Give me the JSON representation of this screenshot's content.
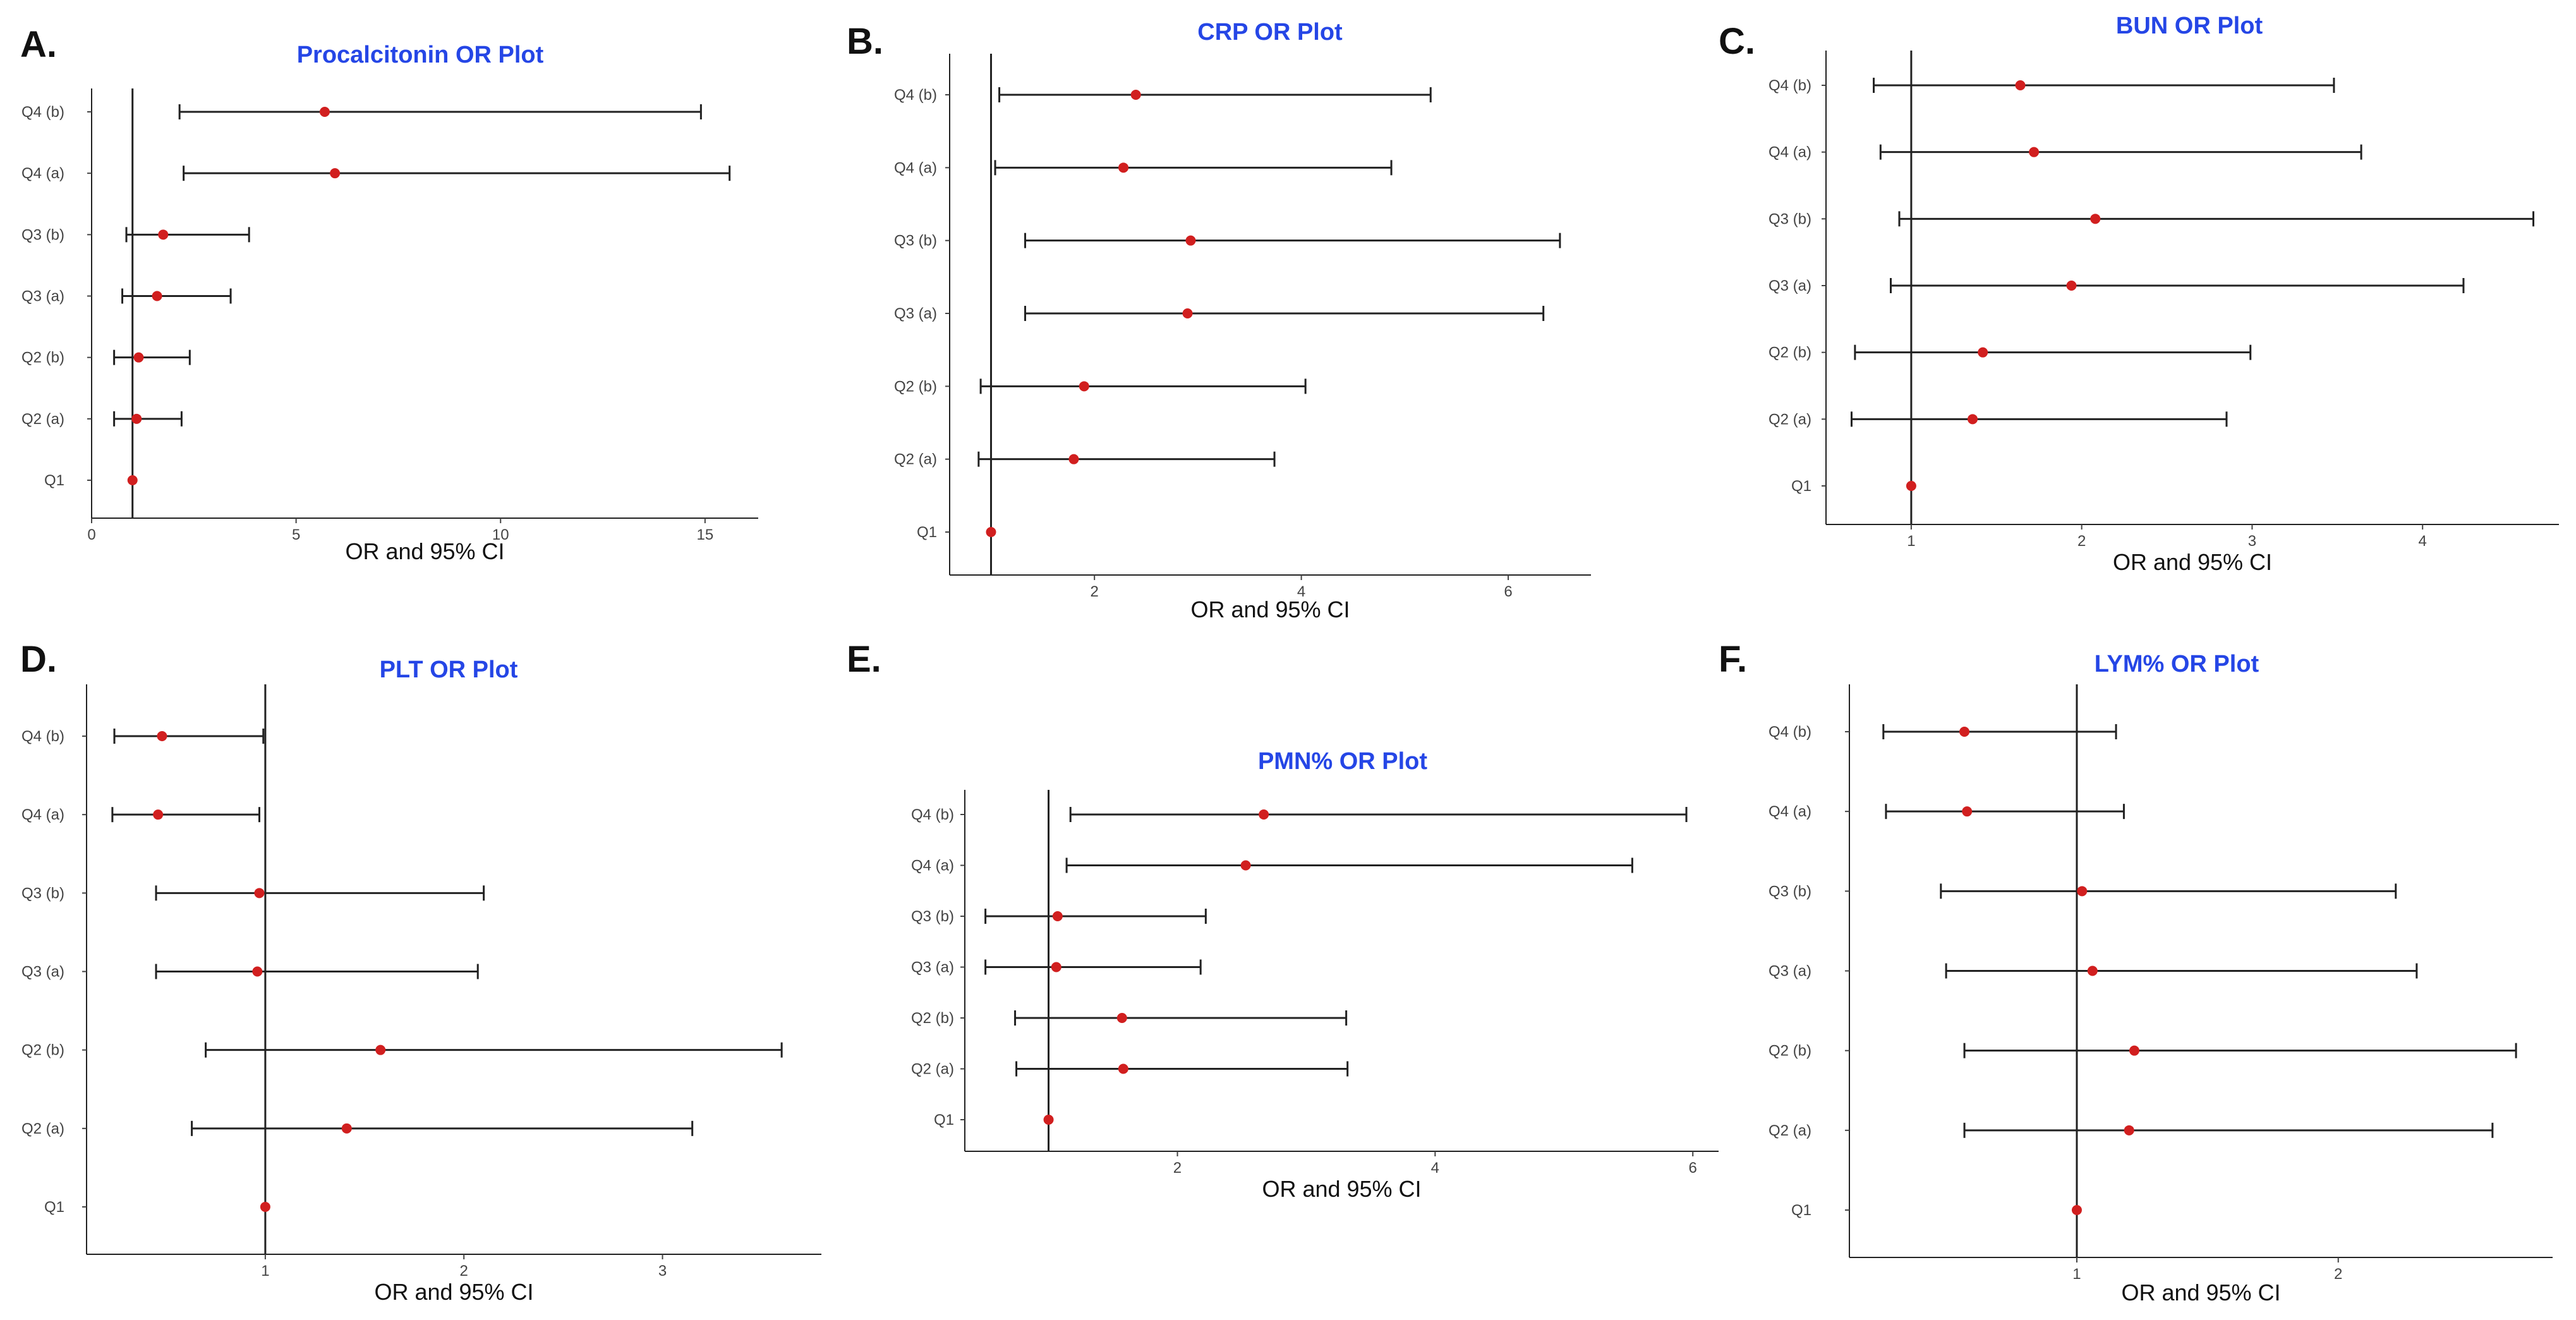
{
  "figure": {
    "colors": {
      "point": "#d11f1f",
      "title": "#2546e6",
      "line": "#222222"
    }
  },
  "chart_data": [
    {
      "letter": "A.",
      "type": "forest",
      "title": "Procalcitonin OR Plot",
      "xlabel": "OR and 95% CI",
      "ylabel": "",
      "ref_value": 1,
      "xlim": [
        0,
        16.3
      ],
      "xticks": [
        0,
        5,
        10,
        15
      ],
      "xtick_labels": [
        "0",
        "5",
        "10",
        "15"
      ],
      "rows": [
        {
          "label": "Q4 (b)",
          "or": 5.7,
          "low": 2.15,
          "high": 14.9
        },
        {
          "label": "Q4 (a)",
          "or": 5.95,
          "low": 2.25,
          "high": 15.6
        },
        {
          "label": "Q3 (b)",
          "or": 1.75,
          "low": 0.85,
          "high": 3.85
        },
        {
          "label": "Q3 (a)",
          "or": 1.6,
          "low": 0.75,
          "high": 3.4
        },
        {
          "label": "Q2 (b)",
          "or": 1.15,
          "low": 0.55,
          "high": 2.4
        },
        {
          "label": "Q2 (a)",
          "or": 1.1,
          "low": 0.55,
          "high": 2.2
        },
        {
          "label": "Q1",
          "or": 1.0,
          "low": 1.0,
          "high": 1.0
        }
      ]
    },
    {
      "letter": "B.",
      "type": "forest",
      "title": "CRP OR Plot",
      "xlabel": "OR and 95% CI",
      "ylabel": "",
      "ref_value": 1,
      "xlim": [
        0.6,
        6.8
      ],
      "xticks": [
        2,
        4,
        6
      ],
      "xtick_labels": [
        "2",
        "4",
        "6"
      ],
      "rows": [
        {
          "label": "Q4 (b)",
          "or": 2.4,
          "low": 1.08,
          "high": 5.25
        },
        {
          "label": "Q4 (a)",
          "or": 2.28,
          "low": 1.04,
          "high": 4.87
        },
        {
          "label": "Q3 (b)",
          "or": 2.93,
          "low": 1.33,
          "high": 6.5
        },
        {
          "label": "Q3 (a)",
          "or": 2.9,
          "low": 1.33,
          "high": 6.34
        },
        {
          "label": "Q2 (b)",
          "or": 1.9,
          "low": 0.9,
          "high": 4.04
        },
        {
          "label": "Q2 (a)",
          "or": 1.8,
          "low": 0.88,
          "high": 3.74
        },
        {
          "label": "Q1",
          "or": 1.0,
          "low": 1.0,
          "high": 1.0
        }
      ]
    },
    {
      "letter": "C.",
      "type": "forest",
      "title": "BUN OR Plot",
      "xlabel": "OR and 95% CI",
      "ylabel": "",
      "ref_value": 1,
      "xlim": [
        0.5,
        4.8
      ],
      "xticks": [
        1,
        2,
        3,
        4
      ],
      "xtick_labels": [
        "1",
        "2",
        "3",
        "4"
      ],
      "rows": [
        {
          "label": "Q4 (b)",
          "or": 1.64,
          "low": 0.78,
          "high": 3.48
        },
        {
          "label": "Q4 (a)",
          "or": 1.72,
          "low": 0.82,
          "high": 3.64
        },
        {
          "label": "Q3 (b)",
          "or": 2.08,
          "low": 0.93,
          "high": 4.65
        },
        {
          "label": "Q3 (a)",
          "or": 1.94,
          "low": 0.88,
          "high": 4.24
        },
        {
          "label": "Q2 (b)",
          "or": 1.42,
          "low": 0.67,
          "high": 2.99
        },
        {
          "label": "Q2 (a)",
          "or": 1.36,
          "low": 0.65,
          "high": 2.85
        },
        {
          "label": "Q1",
          "or": 1.0,
          "low": 1.0,
          "high": 1.0
        }
      ]
    },
    {
      "letter": "D.",
      "type": "forest",
      "title": "PLT OR Plot",
      "xlabel": "OR and 95% CI",
      "ylabel": "",
      "ref_value": 1,
      "xlim": [
        0.1,
        3.8
      ],
      "xticks": [
        1,
        2,
        3
      ],
      "xtick_labels": [
        "1",
        "2",
        "3"
      ],
      "rows": [
        {
          "label": "Q4 (b)",
          "or": 0.48,
          "low": 0.24,
          "high": 0.99
        },
        {
          "label": "Q4 (a)",
          "or": 0.46,
          "low": 0.23,
          "high": 0.97
        },
        {
          "label": "Q3 (b)",
          "or": 0.97,
          "low": 0.45,
          "high": 2.1
        },
        {
          "label": "Q3 (a)",
          "or": 0.96,
          "low": 0.45,
          "high": 2.07
        },
        {
          "label": "Q2 (b)",
          "or": 1.58,
          "low": 0.7,
          "high": 3.6
        },
        {
          "label": "Q2 (a)",
          "or": 1.41,
          "low": 0.63,
          "high": 3.15
        },
        {
          "label": "Q1",
          "or": 1.0,
          "low": 1.0,
          "high": 1.0
        }
      ]
    },
    {
      "letter": "E.",
      "type": "forest",
      "title": "PMN% OR Plot",
      "xlabel": "OR and 95% CI",
      "ylabel": "",
      "ref_value": 1,
      "xlim": [
        0.35,
        6.2
      ],
      "xticks": [
        2,
        4,
        6
      ],
      "xtick_labels": [
        "2",
        "4",
        "6"
      ],
      "rows": [
        {
          "label": "Q4 (b)",
          "or": 2.67,
          "low": 1.17,
          "high": 5.95
        },
        {
          "label": "Q4 (a)",
          "or": 2.53,
          "low": 1.14,
          "high": 5.53
        },
        {
          "label": "Q3 (b)",
          "or": 1.07,
          "low": 0.51,
          "high": 2.22
        },
        {
          "label": "Q3 (a)",
          "or": 1.06,
          "low": 0.51,
          "high": 2.18
        },
        {
          "label": "Q2 (b)",
          "or": 1.57,
          "low": 0.74,
          "high": 3.31
        },
        {
          "label": "Q2 (a)",
          "or": 1.58,
          "low": 0.75,
          "high": 3.32
        },
        {
          "label": "Q1",
          "or": 1.0,
          "low": 1.0,
          "high": 1.0
        }
      ]
    },
    {
      "letter": "F.",
      "type": "forest",
      "title": "LYM% OR Plot",
      "xlabel": "OR and 95% CI",
      "ylabel": "",
      "ref_value": 1,
      "xlim": [
        0.13,
        2.82
      ],
      "xticks": [
        1,
        2
      ],
      "xtick_labels": [
        "1",
        "2"
      ],
      "rows": [
        {
          "label": "Q4 (b)",
          "or": 0.57,
          "low": 0.26,
          "high": 1.15
        },
        {
          "label": "Q4 (a)",
          "or": 0.58,
          "low": 0.27,
          "high": 1.18
        },
        {
          "label": "Q3 (b)",
          "or": 1.02,
          "low": 0.48,
          "high": 2.22
        },
        {
          "label": "Q3 (a)",
          "or": 1.06,
          "low": 0.5,
          "high": 2.3
        },
        {
          "label": "Q2 (b)",
          "or": 1.22,
          "low": 0.57,
          "high": 2.68
        },
        {
          "label": "Q2 (a)",
          "or": 1.2,
          "low": 0.57,
          "high": 2.59
        },
        {
          "label": "Q1",
          "or": 1.0,
          "low": 1.0,
          "high": 1.0
        }
      ]
    }
  ]
}
